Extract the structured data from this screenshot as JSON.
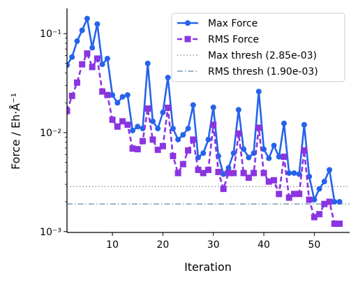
{
  "chart_data": {
    "type": "line",
    "title": "",
    "xlabel": "Iteration",
    "ylabel": "Force / Eh·Å⁻¹",
    "yscale": "log",
    "xlim": [
      1,
      57
    ],
    "ylim": [
      0.00098,
      0.18
    ],
    "xticks": [
      10,
      20,
      30,
      40,
      50
    ],
    "xtick_labels": [
      "10",
      "20",
      "30",
      "40",
      "50"
    ],
    "yticks": [
      0.001,
      0.01,
      0.1
    ],
    "ytick_labels": [
      "10⁻³",
      "10⁻²",
      "10⁻¹"
    ],
    "grid": false,
    "legend_position": "top-right",
    "series": [
      {
        "name": "Max Force",
        "color": "#2563eb",
        "linestyle": "solid",
        "marker": "circle",
        "x": [
          1,
          2,
          3,
          4,
          5,
          6,
          7,
          8,
          9,
          10,
          11,
          12,
          13,
          14,
          15,
          16,
          17,
          18,
          19,
          20,
          21,
          22,
          23,
          24,
          25,
          26,
          27,
          28,
          29,
          30,
          31,
          32,
          33,
          34,
          35,
          36,
          37,
          38,
          39,
          40,
          41,
          42,
          43,
          44,
          45,
          46,
          47,
          48,
          49,
          50,
          51,
          52,
          53,
          54,
          55
        ],
        "values": [
          0.048,
          0.058,
          0.084,
          0.108,
          0.142,
          0.072,
          0.125,
          0.049,
          0.056,
          0.024,
          0.02,
          0.023,
          0.024,
          0.0105,
          0.0115,
          0.011,
          0.05,
          0.013,
          0.011,
          0.016,
          0.036,
          0.011,
          0.0085,
          0.0095,
          0.011,
          0.019,
          0.0056,
          0.0062,
          0.0085,
          0.018,
          0.0058,
          0.0038,
          0.0044,
          0.0062,
          0.017,
          0.0068,
          0.0056,
          0.0062,
          0.026,
          0.0068,
          0.0055,
          0.0074,
          0.0057,
          0.0124,
          0.0039,
          0.0039,
          0.0038,
          0.012,
          0.0036,
          0.0021,
          0.0027,
          0.0032,
          0.0042,
          0.002,
          0.002
        ]
      },
      {
        "name": "RMS Force",
        "color": "#8b34e0",
        "linestyle": "dashed",
        "marker": "square",
        "x": [
          1,
          2,
          3,
          4,
          5,
          6,
          7,
          8,
          9,
          10,
          11,
          12,
          13,
          14,
          15,
          16,
          17,
          18,
          19,
          20,
          21,
          22,
          23,
          24,
          25,
          26,
          27,
          28,
          29,
          30,
          31,
          32,
          33,
          34,
          35,
          36,
          37,
          38,
          39,
          40,
          41,
          42,
          43,
          44,
          45,
          46,
          47,
          48,
          49,
          50,
          51,
          52,
          53,
          54,
          55
        ],
        "values": [
          0.0165,
          0.0235,
          0.032,
          0.049,
          0.063,
          0.046,
          0.056,
          0.026,
          0.024,
          0.0135,
          0.0115,
          0.013,
          0.012,
          0.0069,
          0.0068,
          0.0082,
          0.0175,
          0.0085,
          0.0067,
          0.0073,
          0.0178,
          0.0058,
          0.0039,
          0.0048,
          0.0066,
          0.0085,
          0.0042,
          0.0039,
          0.0042,
          0.012,
          0.004,
          0.0027,
          0.0039,
          0.0039,
          0.0098,
          0.0039,
          0.0035,
          0.0039,
          0.0112,
          0.0039,
          0.0032,
          0.0033,
          0.0024,
          0.0057,
          0.0022,
          0.0024,
          0.0024,
          0.0066,
          0.0021,
          0.0014,
          0.0015,
          0.0019,
          0.002,
          0.0012,
          0.0012
        ]
      }
    ],
    "thresholds": [
      {
        "name": "Max thresh (2.85e-03)",
        "value": 0.00285,
        "color": "#999999",
        "linestyle": "dotted"
      },
      {
        "name": "RMS thresh (1.90e-03)",
        "value": 0.0019,
        "color": "#7f9ab0",
        "linestyle": "dashdot"
      }
    ]
  }
}
